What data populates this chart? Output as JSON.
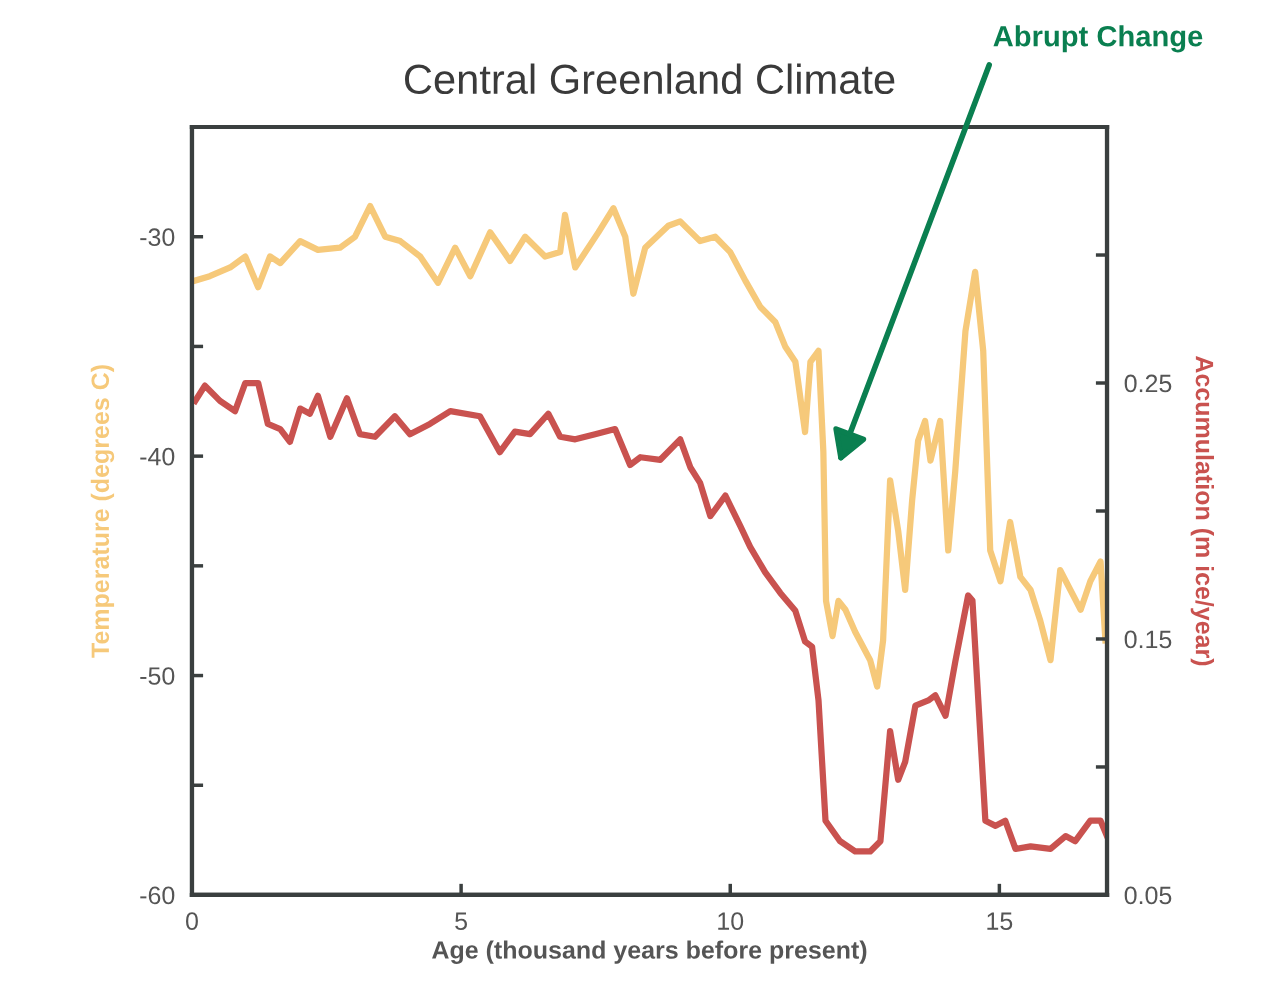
{
  "chart_data": {
    "type": "line",
    "title": "Central Greenland Climate",
    "xlabel": "Age (thousand years before present)",
    "ylabel": "Temperature (degrees C)",
    "y2label": "Accumulation (m ice/year)",
    "xlim": [
      0,
      17
    ],
    "xticks": [
      0,
      5,
      10,
      15
    ],
    "ylim": [
      -60,
      -25
    ],
    "yticks": [
      -60,
      {
        "value": -55,
        "label": null
      },
      -50,
      {
        "value": -45,
        "label": null
      },
      -40,
      {
        "value": -35,
        "label": null
      },
      -30
    ],
    "y2lim": [
      0.05,
      0.35
    ],
    "y2ticks": [
      0.05,
      {
        "value": 0.1,
        "label": null
      },
      0.15,
      {
        "value": 0.2,
        "label": null
      },
      0.25,
      {
        "value": 0.3,
        "label": null
      }
    ],
    "grid": false,
    "legend": false,
    "line_style": "solid",
    "marker": "none",
    "annotations": [
      "Abrupt Change"
    ],
    "series": [
      {
        "color": "#f6c97a",
        "axis": "y",
        "x": [
          0.06,
          0.33,
          0.71,
          0.99,
          1.23,
          1.45,
          1.64,
          2.01,
          2.34,
          2.75,
          3.03,
          3.31,
          3.59,
          3.87,
          4.24,
          4.57,
          4.89,
          5.17,
          5.54,
          5.91,
          6.19,
          6.56,
          6.84,
          6.93,
          7.12,
          7.55,
          7.83,
          8.05,
          8.2,
          8.42,
          8.85,
          9.07,
          9.44,
          9.72,
          10.0,
          10.28,
          10.56,
          10.84,
          11.02,
          11.21,
          11.39,
          11.49,
          11.64,
          11.73,
          11.78,
          11.9,
          12.01,
          12.14,
          12.32,
          12.6,
          12.73,
          12.84,
          12.97,
          13.12,
          13.25,
          13.38,
          13.49,
          13.62,
          13.72,
          13.9,
          14.05,
          14.18,
          14.37,
          14.55,
          14.7,
          14.83,
          15.02,
          15.2,
          15.39,
          15.58,
          15.76,
          15.95,
          16.13,
          16.32,
          16.51,
          16.69,
          16.88,
          16.97
        ],
        "values": [
          -32.0,
          -31.8,
          -31.4,
          -30.9,
          -32.3,
          -30.9,
          -31.2,
          -30.2,
          -30.6,
          -30.5,
          -30.0,
          -28.6,
          -30.0,
          -30.2,
          -30.9,
          -32.1,
          -30.5,
          -31.8,
          -29.8,
          -31.1,
          -30.0,
          -30.9,
          -30.7,
          -29.0,
          -31.4,
          -29.8,
          -28.7,
          -30.0,
          -32.6,
          -30.5,
          -29.5,
          -29.3,
          -30.2,
          -30.0,
          -30.7,
          -32.0,
          -33.2,
          -33.9,
          -35.0,
          -35.7,
          -38.9,
          -35.7,
          -35.2,
          -39.8,
          -46.6,
          -48.2,
          -46.6,
          -47.0,
          -48.0,
          -49.3,
          -50.5,
          -48.4,
          -41.1,
          -43.4,
          -46.1,
          -42.0,
          -39.3,
          -38.4,
          -40.2,
          -38.4,
          -44.3,
          -40.7,
          -34.3,
          -31.6,
          -35.2,
          -44.3,
          -45.7,
          -43.0,
          -45.5,
          -46.1,
          -47.5,
          -49.3,
          -45.2,
          -46.1,
          -47.0,
          -45.7,
          -44.8,
          -48.4
        ]
      },
      {
        "color": "#c9524f",
        "axis": "y2",
        "x": [
          0.06,
          0.24,
          0.52,
          0.8,
          0.99,
          1.23,
          1.41,
          1.64,
          1.82,
          2.01,
          2.19,
          2.34,
          2.57,
          2.88,
          3.12,
          3.4,
          3.77,
          4.05,
          4.42,
          4.8,
          5.35,
          5.72,
          6.0,
          6.28,
          6.62,
          6.84,
          7.12,
          7.49,
          7.86,
          8.14,
          8.33,
          8.7,
          9.07,
          9.26,
          9.44,
          9.63,
          9.91,
          10.19,
          10.37,
          10.65,
          10.93,
          11.21,
          11.39,
          11.52,
          11.64,
          11.77,
          12.04,
          12.32,
          12.6,
          12.79,
          12.97,
          13.12,
          13.25,
          13.44,
          13.68,
          13.81,
          14.0,
          14.18,
          14.42,
          14.5,
          14.74,
          14.93,
          15.11,
          15.3,
          15.58,
          15.95,
          16.23,
          16.41,
          16.69,
          16.88,
          17.0
        ],
        "values": [
          0.243,
          0.249,
          0.243,
          0.239,
          0.25,
          0.25,
          0.234,
          0.232,
          0.227,
          0.24,
          0.238,
          0.245,
          0.229,
          0.244,
          0.23,
          0.229,
          0.237,
          0.23,
          0.234,
          0.239,
          0.237,
          0.223,
          0.231,
          0.23,
          0.238,
          0.229,
          0.228,
          0.23,
          0.232,
          0.218,
          0.221,
          0.22,
          0.228,
          0.217,
          0.211,
          0.198,
          0.206,
          0.194,
          0.186,
          0.176,
          0.168,
          0.161,
          0.149,
          0.147,
          0.126,
          0.079,
          0.071,
          0.067,
          0.067,
          0.071,
          0.114,
          0.095,
          0.102,
          0.124,
          0.126,
          0.128,
          0.12,
          0.141,
          0.167,
          0.165,
          0.079,
          0.077,
          0.079,
          0.068,
          0.069,
          0.068,
          0.073,
          0.071,
          0.079,
          0.079,
          0.073
        ]
      }
    ]
  }
}
